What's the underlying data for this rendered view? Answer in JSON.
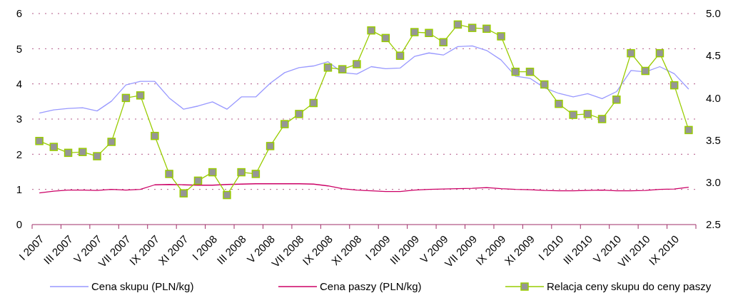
{
  "chart_data": {
    "type": "line",
    "categories": [
      "I 2007",
      null,
      "III 2007",
      null,
      "V 2007",
      null,
      "VII 2007",
      null,
      "IX 2007",
      null,
      "XI 2007",
      null,
      "I 2008",
      null,
      "III 2008",
      null,
      "V 2008",
      null,
      "VII 2008",
      null,
      "IX 2008",
      null,
      "XI 2008",
      null,
      "I 2009",
      null,
      "III 2009",
      null,
      "V 2009",
      null,
      "VII 2009",
      null,
      "IX 2009",
      null,
      "XI 2009",
      null,
      "I 2010",
      null,
      "III 2010",
      null,
      "V 2010",
      null,
      "VII 2010",
      null,
      "IX 2010",
      null
    ],
    "series": [
      {
        "name": "Cena skupu (PLN/kg)",
        "color": "#9999ff",
        "marker": "none",
        "values": [
          3.17,
          3.26,
          3.3,
          3.32,
          3.23,
          3.51,
          3.97,
          4.07,
          4.07,
          3.6,
          3.28,
          3.37,
          3.49,
          3.28,
          3.63,
          3.63,
          4.02,
          4.32,
          4.46,
          4.51,
          4.63,
          4.32,
          4.28,
          4.49,
          4.43,
          4.45,
          4.78,
          4.88,
          4.82,
          5.06,
          5.08,
          4.95,
          4.68,
          4.22,
          4.16,
          3.89,
          3.73,
          3.63,
          3.72,
          3.58,
          3.78,
          4.38,
          4.34,
          4.49,
          4.29,
          3.85
        ]
      },
      {
        "name": "Cena paszy (PLN/kg)",
        "color": "#cc0066",
        "marker": "none",
        "values": [
          0.9,
          0.95,
          0.98,
          0.98,
          0.97,
          1.0,
          0.98,
          1.0,
          1.13,
          1.14,
          1.13,
          1.12,
          1.12,
          1.14,
          1.15,
          1.16,
          1.16,
          1.16,
          1.16,
          1.15,
          1.1,
          1.02,
          0.98,
          0.96,
          0.94,
          0.94,
          0.98,
          1.0,
          1.01,
          1.02,
          1.03,
          1.05,
          1.02,
          1.0,
          0.99,
          0.97,
          0.96,
          0.96,
          0.97,
          0.98,
          0.96,
          0.96,
          0.97,
          1.0,
          1.01,
          1.06
        ]
      },
      {
        "name": "Relacja ceny skupu do ceny paszy",
        "color": "#99cc00",
        "marker": "square",
        "axis": "y2",
        "values": [
          3.49,
          3.42,
          3.35,
          3.36,
          3.31,
          3.48,
          4.0,
          4.03,
          3.55,
          3.1,
          2.87,
          3.02,
          3.12,
          2.85,
          3.12,
          3.1,
          3.43,
          3.69,
          3.81,
          3.94,
          4.36,
          4.34,
          4.4,
          4.8,
          4.71,
          4.5,
          4.78,
          4.77,
          4.66,
          4.87,
          4.83,
          4.82,
          4.73,
          4.31,
          4.31,
          4.16,
          3.93,
          3.8,
          3.81,
          3.75,
          3.98,
          4.53,
          4.32,
          4.53,
          4.15,
          3.62
        ]
      }
    ],
    "ylim": [
      0,
      6
    ],
    "yticks": [
      0,
      1,
      2,
      3,
      4,
      5,
      6
    ],
    "y2lim": [
      2.5,
      5.0
    ],
    "y2ticks": [
      {
        "value": 2.5,
        "label": "2.5"
      },
      {
        "value": 3.0,
        "label": "3.0"
      },
      {
        "value": 3.5,
        "label": "3.5"
      },
      {
        "value": 4.0,
        "label": "4.0"
      },
      {
        "value": 4.5,
        "label": "4.5"
      },
      {
        "value": 5.0,
        "label": "5.0"
      }
    ],
    "grid": "y",
    "legend": "bottom"
  }
}
